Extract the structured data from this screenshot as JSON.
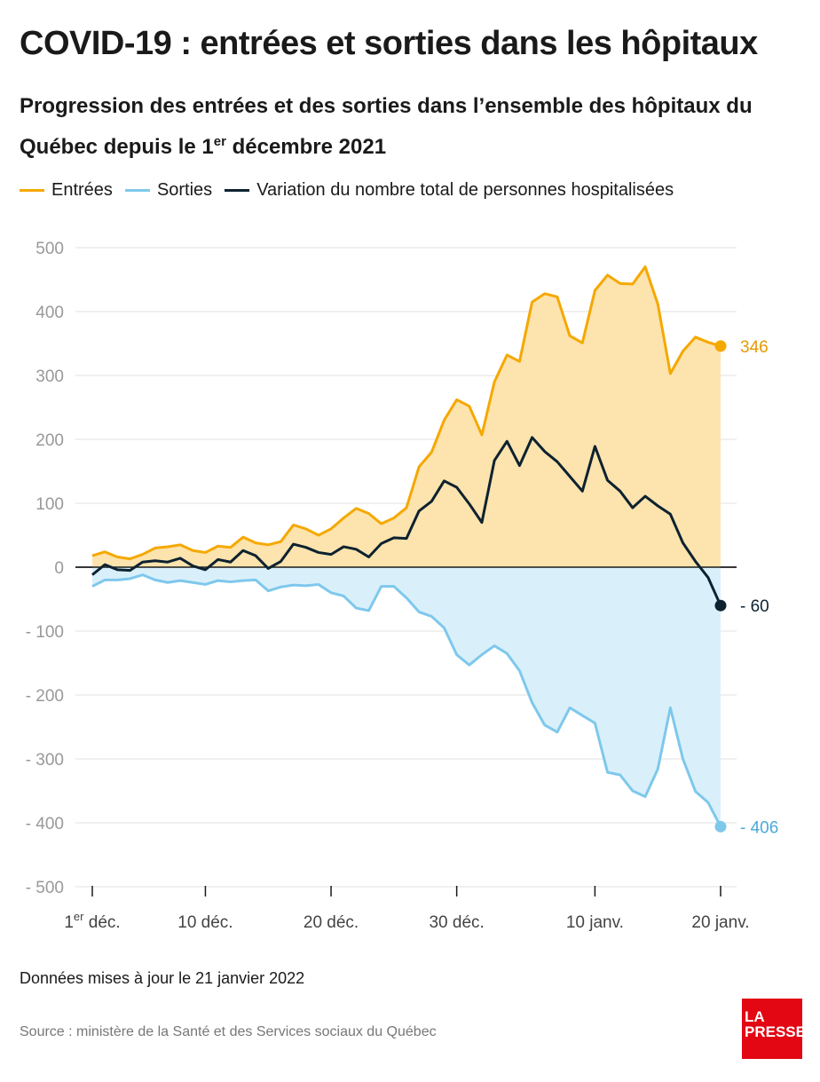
{
  "header": {
    "title": "COVID-19 : entrées et sorties dans les hôpitaux",
    "subtitle_main": "Progression des entrées et des sorties dans l’ensemble des hôpitaux du Québec depuis le 1",
    "subtitle_sup": "er",
    "subtitle_end": " décembre 2021"
  },
  "legend": [
    {
      "label": "Entrées",
      "color": "#f5a800"
    },
    {
      "label": "Sorties",
      "color": "#7ec8ec"
    },
    {
      "label": "Variation du nombre total de personnes hospitalisées",
      "color": "#0d2230"
    }
  ],
  "footer": {
    "note": "Données mises à jour le 21 janvier 2022",
    "source": "Source : ministère de la Santé et des Services sociaux du Québec",
    "logo_line1": "LA",
    "logo_line2": "PRESSE"
  },
  "chart_data": {
    "type": "area",
    "title": "COVID-19 : entrées et sorties dans les hôpitaux",
    "xlabel": "",
    "ylabel": "",
    "ylim": [
      -500,
      500
    ],
    "y_ticks": [
      500,
      400,
      300,
      200,
      100,
      0,
      -100,
      -200,
      -300,
      -400,
      -500
    ],
    "y_tick_labels": [
      "500",
      "400",
      "300",
      "200",
      "100",
      "0",
      "- 100",
      "- 200",
      "- 300",
      "- 400",
      "- 500"
    ],
    "x_ticks": [
      {
        "day": 1,
        "label": "1",
        "sup": "er",
        "suffix": " déc."
      },
      {
        "day": 10,
        "label": "10 déc.",
        "sup": "",
        "suffix": ""
      },
      {
        "day": 20,
        "label": "20 déc.",
        "sup": "",
        "suffix": ""
      },
      {
        "day": 30,
        "label": "30 déc.",
        "sup": "",
        "suffix": ""
      },
      {
        "day": 41,
        "label": "10 janv.",
        "sup": "",
        "suffix": ""
      },
      {
        "day": 51,
        "label": "20 janv.",
        "sup": "",
        "suffix": ""
      }
    ],
    "x_days": [
      1,
      2,
      3,
      4,
      5,
      6,
      7,
      8,
      9,
      10,
      11,
      12,
      13,
      14,
      15,
      16,
      17,
      18,
      19,
      20,
      21,
      22,
      23,
      24,
      25,
      26,
      27,
      28,
      29,
      30,
      31,
      32,
      33,
      34,
      35,
      36,
      37,
      38,
      39,
      40,
      41,
      42,
      43,
      44,
      45,
      46,
      47,
      48,
      49,
      50,
      51
    ],
    "grid": true,
    "legend_position": "top-left",
    "series": [
      {
        "name": "Entrées",
        "color": "#f5a800",
        "fill": "#fde3ad",
        "values": [
          18,
          24,
          16,
          13,
          20,
          30,
          32,
          35,
          26,
          23,
          33,
          31,
          47,
          38,
          35,
          40,
          66,
          60,
          50,
          60,
          77,
          92,
          84,
          68,
          77,
          93,
          157,
          180,
          230,
          262,
          252,
          207,
          290,
          332,
          322,
          415,
          428,
          423,
          362,
          351,
          433,
          457,
          444,
          443,
          470,
          412,
          303,
          338,
          360,
          352,
          346
        ]
      },
      {
        "name": "Sorties",
        "color": "#7ec8ec",
        "fill": "#d9f0fb",
        "values": [
          -30,
          -20,
          -20,
          -18,
          -12,
          -20,
          -24,
          -21,
          -24,
          -27,
          -21,
          -23,
          -21,
          -20,
          -37,
          -31,
          -28,
          -29,
          -27,
          -40,
          -45,
          -64,
          -68,
          -30,
          -30,
          -48,
          -70,
          -77,
          -95,
          -137,
          -153,
          -137,
          -123,
          -135,
          -162,
          -212,
          -247,
          -258,
          -220,
          -232,
          -244,
          -321,
          -325,
          -350,
          -359,
          -316,
          -220,
          -300,
          -351,
          -368,
          -406
        ]
      },
      {
        "name": "Variation du nombre total de personnes hospitalisées",
        "color": "#0d2230",
        "values": [
          -12,
          4,
          -4,
          -5,
          8,
          10,
          8,
          14,
          2,
          -4,
          12,
          8,
          26,
          18,
          -2,
          9,
          36,
          31,
          23,
          20,
          32,
          28,
          16,
          37,
          46,
          45,
          88,
          103,
          135,
          125,
          99,
          70,
          167,
          197,
          159,
          203,
          181,
          165,
          142,
          119,
          189,
          136,
          119,
          93,
          111,
          96,
          83,
          38,
          9,
          -16,
          -60
        ]
      }
    ],
    "end_labels": [
      {
        "series": 0,
        "text": "346"
      },
      {
        "series": 2,
        "text": "- 60"
      },
      {
        "series": 1,
        "text": "- 406"
      }
    ]
  }
}
